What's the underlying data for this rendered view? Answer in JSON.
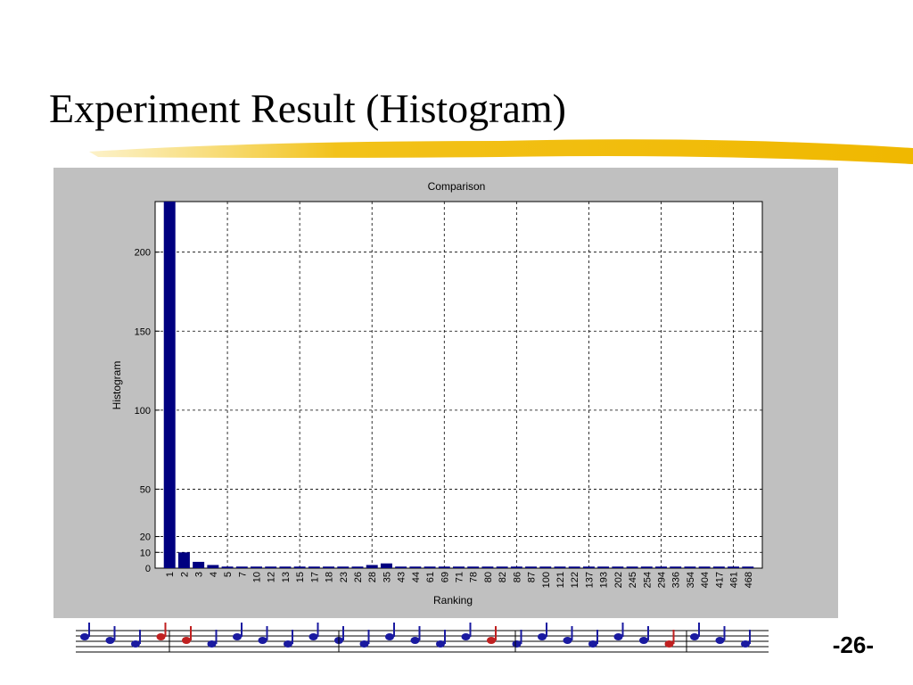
{
  "slide": {
    "title": "Experiment Result (Histogram)",
    "page_number": "-26-"
  },
  "chart_data": {
    "type": "bar",
    "title": "Comparison",
    "x_label": "Ranking",
    "y_label": "Histogram",
    "categories": [
      "1",
      "2",
      "3",
      "4",
      "5",
      "7",
      "10",
      "12",
      "13",
      "15",
      "17",
      "18",
      "23",
      "26",
      "28",
      "35",
      "43",
      "44",
      "61",
      "69",
      "71",
      "78",
      "80",
      "82",
      "86",
      "87",
      "100",
      "121",
      "122",
      "137",
      "193",
      "202",
      "245",
      "254",
      "294",
      "336",
      "354",
      "404",
      "417",
      "461",
      "468"
    ],
    "values": [
      232,
      10,
      4,
      2,
      1,
      1,
      1,
      1,
      1,
      1,
      1,
      1,
      1,
      1,
      2,
      3,
      1,
      1,
      1,
      1,
      1,
      1,
      1,
      1,
      1,
      1,
      1,
      1,
      1,
      1,
      1,
      1,
      1,
      1,
      1,
      1,
      1,
      1,
      1,
      1,
      1
    ],
    "color": "#000080",
    "ylim": [
      0,
      232
    ],
    "yticks": [
      0,
      10,
      20,
      50,
      100,
      150,
      200
    ],
    "grid": true
  }
}
